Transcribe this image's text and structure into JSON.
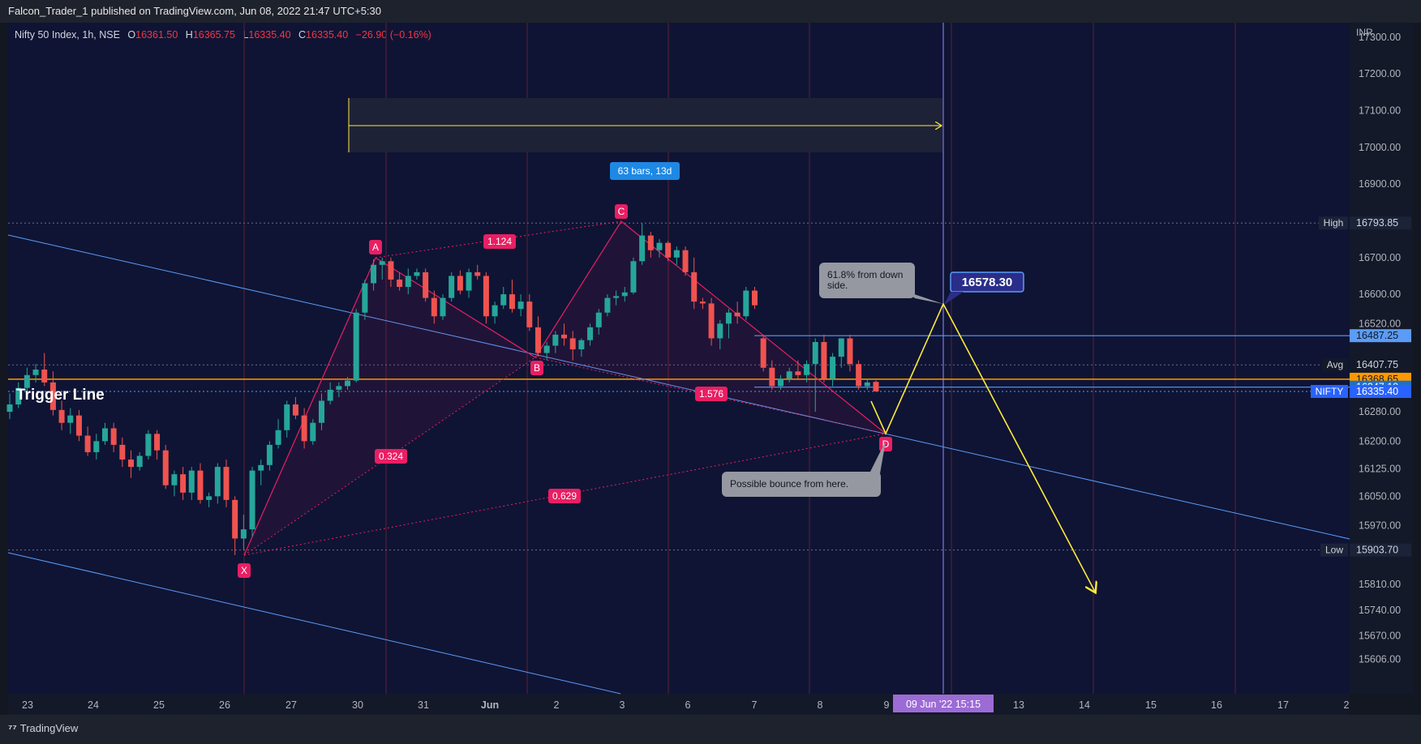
{
  "header": {
    "published_text": "Falcon_Trader_1 published on TradingView.com, Jun 08, 2022 21:47 UTC+5:30"
  },
  "legend": {
    "symbol": "Nifty 50 Index, 1h, NSE",
    "o_label": "O",
    "o_value": "16361.50",
    "h_label": "H",
    "h_value": "16365.75",
    "l_label": "L",
    "l_value": "16335.40",
    "c_label": "C",
    "c_value": "16335.40",
    "change": "−26.90 (−0.16%)"
  },
  "price_axis": {
    "currency": "INR",
    "tick_labels": [
      "17300.00",
      "17200.00",
      "17100.00",
      "17000.00",
      "16900.00",
      "16700.00",
      "16600.00",
      "16520.00",
      "16280.00",
      "16200.00",
      "16125.00",
      "16050.00",
      "15970.00",
      "15810.00",
      "15740.00",
      "15670.00",
      "15606.00"
    ],
    "tick_values": [
      17300,
      17200,
      17100,
      17000,
      16900,
      16700,
      16600,
      16520,
      16280,
      16200,
      16125,
      16050,
      15970,
      15810,
      15740,
      15670,
      15606
    ]
  },
  "price_labels": {
    "high": {
      "label": "High",
      "value": "16793.85"
    },
    "low": {
      "label": "Low",
      "value": "15903.70"
    },
    "avg": {
      "label": "Avg",
      "value": "16407.75"
    },
    "line_16487": "16487.25",
    "line_16368": "16368.65",
    "line_16347": "16347.10",
    "nifty": {
      "label": "NIFTY",
      "value": "16335.40"
    }
  },
  "time_axis": {
    "labels": [
      "23",
      "24",
      "25",
      "26",
      "27",
      "30",
      "31",
      "Jun",
      "2",
      "3",
      "6",
      "7",
      "8",
      "9",
      "13",
      "14",
      "15",
      "16",
      "17",
      "2"
    ],
    "cursor_label": "09 Jun '22   15:15"
  },
  "annotations": {
    "trigger_line": "Trigger Line",
    "bars_range": "63 bars, 13d",
    "target_price": "16578.30",
    "callout_top_line1": "61.8% from down",
    "callout_top_line2": "side.",
    "callout_bottom": "Possible bounce from here.",
    "point_x": "X",
    "point_a": "A",
    "point_b": "B",
    "point_c": "C",
    "point_d": "D",
    "ratio_xa_b": "0.324",
    "ratio_ab_c": "1.124",
    "ratio_xd": "0.629",
    "ratio_bc_d": "1.576"
  },
  "footer": {
    "brand": "TradingView"
  },
  "colors": {
    "up": "#26a69a",
    "down": "#ef5350",
    "pattern": "#e91e63",
    "trend": "#5b9cf6",
    "trigger": "#ff9800",
    "projection": "#ffeb3b"
  },
  "chart_data": {
    "type": "candlestick",
    "symbol": "Nifty 50 Index",
    "interval": "1h",
    "exchange": "NSE",
    "ohlc_last": {
      "open": 16361.5,
      "high": 16365.75,
      "low": 16335.4,
      "close": 16335.4
    },
    "y_range": [
      15560,
      17330
    ],
    "levels": {
      "high": 16793.85,
      "low": 15903.7,
      "avg": 16407.75,
      "resistance": 16487.25,
      "trigger": 16368.65,
      "support": 16347.1,
      "last": 16335.4
    },
    "harmonic_pattern": {
      "X": {
        "date": "26 May",
        "price": 15903.7
      },
      "A": {
        "date": "30 May",
        "price": 16695
      },
      "B": {
        "date": "1 Jun",
        "price": 16440
      },
      "C": {
        "date": "3 Jun",
        "price": 16793.85
      },
      "D": {
        "date": "9 Jun",
        "price": 16235
      }
    },
    "projection_target": 16578.3,
    "candles": [
      [
        16280,
        16330,
        16260,
        16300
      ],
      [
        16300,
        16360,
        16290,
        16345
      ],
      [
        16345,
        16400,
        16330,
        16380
      ],
      [
        16380,
        16410,
        16360,
        16395
      ],
      [
        16395,
        16440,
        16350,
        16360
      ],
      [
        16360,
        16390,
        16270,
        16285
      ],
      [
        16285,
        16310,
        16230,
        16250
      ],
      [
        16250,
        16290,
        16220,
        16270
      ],
      [
        16270,
        16285,
        16200,
        16215
      ],
      [
        16215,
        16240,
        16160,
        16170
      ],
      [
        16170,
        16220,
        16150,
        16200
      ],
      [
        16200,
        16250,
        16190,
        16235
      ],
      [
        16235,
        16250,
        16170,
        16190
      ],
      [
        16190,
        16210,
        16130,
        16150
      ],
      [
        16150,
        16175,
        16100,
        16130
      ],
      [
        16130,
        16170,
        16120,
        16160
      ],
      [
        16160,
        16230,
        16150,
        16220
      ],
      [
        16220,
        16230,
        16150,
        16175
      ],
      [
        16175,
        16190,
        16070,
        16080
      ],
      [
        16080,
        16120,
        16050,
        16110
      ],
      [
        16110,
        16130,
        16040,
        16060
      ],
      [
        16060,
        16130,
        16040,
        16120
      ],
      [
        16120,
        16140,
        16030,
        16040
      ],
      [
        16040,
        16060,
        16020,
        16050
      ],
      [
        16050,
        16140,
        16030,
        16130
      ],
      [
        16130,
        16150,
        16020,
        16040
      ],
      [
        16040,
        16050,
        15890,
        15935
      ],
      [
        15935,
        16000,
        15903,
        15960
      ],
      [
        15960,
        16130,
        15940,
        16120
      ],
      [
        16120,
        16150,
        16080,
        16135
      ],
      [
        16135,
        16200,
        16120,
        16190
      ],
      [
        16190,
        16260,
        16180,
        16230
      ],
      [
        16230,
        16310,
        16210,
        16300
      ],
      [
        16300,
        16320,
        16260,
        16270
      ],
      [
        16270,
        16290,
        16180,
        16200
      ],
      [
        16200,
        16260,
        16190,
        16250
      ],
      [
        16250,
        16330,
        16230,
        16310
      ],
      [
        16310,
        16360,
        16300,
        16340
      ],
      [
        16340,
        16360,
        16320,
        16350
      ],
      [
        16350,
        16375,
        16340,
        16365
      ],
      [
        16365,
        16560,
        16360,
        16550
      ],
      [
        16550,
        16640,
        16530,
        16630
      ],
      [
        16630,
        16695,
        16610,
        16680
      ],
      [
        16680,
        16700,
        16640,
        16690
      ],
      [
        16690,
        16700,
        16620,
        16640
      ],
      [
        16640,
        16660,
        16610,
        16620
      ],
      [
        16620,
        16670,
        16600,
        16650
      ],
      [
        16650,
        16670,
        16640,
        16660
      ],
      [
        16660,
        16670,
        16580,
        16590
      ],
      [
        16590,
        16610,
        16520,
        16540
      ],
      [
        16540,
        16600,
        16530,
        16590
      ],
      [
        16590,
        16660,
        16580,
        16650
      ],
      [
        16650,
        16665,
        16600,
        16610
      ],
      [
        16610,
        16670,
        16590,
        16660
      ],
      [
        16660,
        16680,
        16640,
        16650
      ],
      [
        16650,
        16660,
        16520,
        16540
      ],
      [
        16540,
        16580,
        16520,
        16570
      ],
      [
        16570,
        16620,
        16560,
        16600
      ],
      [
        16600,
        16640,
        16550,
        16560
      ],
      [
        16560,
        16600,
        16540,
        16580
      ],
      [
        16580,
        16600,
        16500,
        16510
      ],
      [
        16510,
        16540,
        16430,
        16440
      ],
      [
        16440,
        16470,
        16420,
        16460
      ],
      [
        16460,
        16500,
        16440,
        16490
      ],
      [
        16490,
        16520,
        16460,
        16480
      ],
      [
        16480,
        16500,
        16420,
        16450
      ],
      [
        16450,
        16480,
        16430,
        16475
      ],
      [
        16475,
        16520,
        16460,
        16510
      ],
      [
        16510,
        16560,
        16490,
        16550
      ],
      [
        16550,
        16600,
        16540,
        16590
      ],
      [
        16590,
        16610,
        16570,
        16595
      ],
      [
        16595,
        16620,
        16580,
        16605
      ],
      [
        16605,
        16700,
        16600,
        16690
      ],
      [
        16690,
        16793,
        16680,
        16760
      ],
      [
        16760,
        16770,
        16700,
        16720
      ],
      [
        16720,
        16750,
        16700,
        16740
      ],
      [
        16740,
        16745,
        16690,
        16700
      ],
      [
        16700,
        16730,
        16680,
        16720
      ],
      [
        16720,
        16730,
        16650,
        16660
      ],
      [
        16660,
        16700,
        16560,
        16580
      ],
      [
        16580,
        16590,
        16560,
        16575
      ],
      [
        16575,
        16590,
        16460,
        16480
      ],
      [
        16480,
        16530,
        16450,
        16520
      ],
      [
        16520,
        16560,
        16480,
        16550
      ],
      [
        16550,
        16580,
        16520,
        16540
      ],
      [
        16540,
        16620,
        16530,
        16610
      ],
      [
        16610,
        16620,
        16560,
        16570
      ],
      [
        16480,
        16490,
        16390,
        16400
      ],
      [
        16400,
        16420,
        16340,
        16350
      ],
      [
        16350,
        16380,
        16340,
        16370
      ],
      [
        16370,
        16400,
        16360,
        16390
      ],
      [
        16390,
        16420,
        16370,
        16380
      ],
      [
        16380,
        16420,
        16360,
        16410
      ],
      [
        16410,
        16480,
        16280,
        16470
      ],
      [
        16470,
        16490,
        16360,
        16370
      ],
      [
        16370,
        16440,
        16350,
        16430
      ],
      [
        16430,
        16480,
        16400,
        16480
      ],
      [
        16480,
        16490,
        16390,
        16410
      ],
      [
        16410,
        16420,
        16340,
        16350
      ],
      [
        16350,
        16370,
        16340,
        16360
      ],
      [
        16361.5,
        16365.75,
        16335.4,
        16335.4
      ]
    ]
  }
}
